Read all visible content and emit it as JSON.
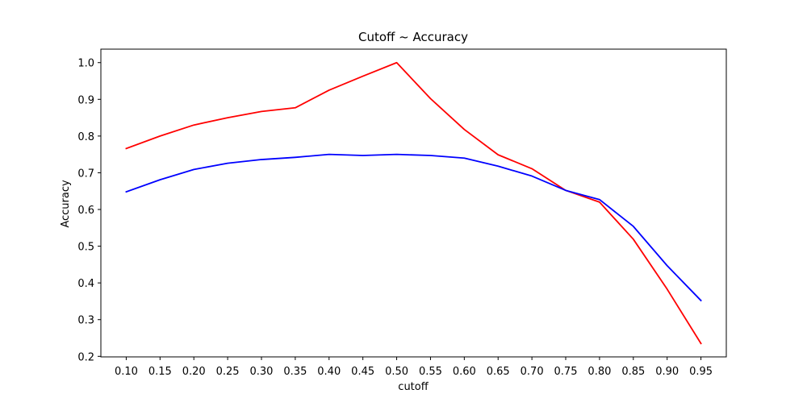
{
  "chart_data": {
    "type": "line",
    "title": "Cutoff ~ Accuracy",
    "xlabel": "cutoff",
    "ylabel": "Accuracy",
    "x": [
      0.1,
      0.15,
      0.2,
      0.25,
      0.3,
      0.35,
      0.4,
      0.45,
      0.5,
      0.55,
      0.6,
      0.65,
      0.7,
      0.75,
      0.8,
      0.85,
      0.9,
      0.95
    ],
    "x_tick_labels": [
      "0.10",
      "0.15",
      "0.20",
      "0.25",
      "0.30",
      "0.35",
      "0.40",
      "0.45",
      "0.50",
      "0.55",
      "0.60",
      "0.65",
      "0.70",
      "0.75",
      "0.80",
      "0.85",
      "0.90",
      "0.95"
    ],
    "y_ticks": [
      0.2,
      0.3,
      0.4,
      0.5,
      0.6,
      0.7,
      0.8,
      0.9,
      1.0
    ],
    "y_tick_labels": [
      "0.2",
      "0.3",
      "0.4",
      "0.5",
      "0.6",
      "0.7",
      "0.8",
      "0.9",
      "1.0"
    ],
    "xlim": [
      0.0625,
      0.9875
    ],
    "ylim": [
      0.1985,
      1.0367
    ],
    "grid": false,
    "legend": "none",
    "series": [
      {
        "color": "#ff0000",
        "values": [
          0.766,
          0.8,
          0.83,
          0.85,
          0.867,
          0.877,
          0.925,
          0.963,
          1.0,
          0.902,
          0.818,
          0.749,
          0.711,
          0.652,
          0.62,
          0.519,
          0.383,
          0.235
        ]
      },
      {
        "color": "#0000ff",
        "values": [
          0.648,
          0.681,
          0.709,
          0.726,
          0.736,
          0.742,
          0.75,
          0.747,
          0.75,
          0.747,
          0.74,
          0.718,
          0.691,
          0.652,
          0.627,
          0.554,
          0.447,
          0.352
        ]
      }
    ]
  }
}
